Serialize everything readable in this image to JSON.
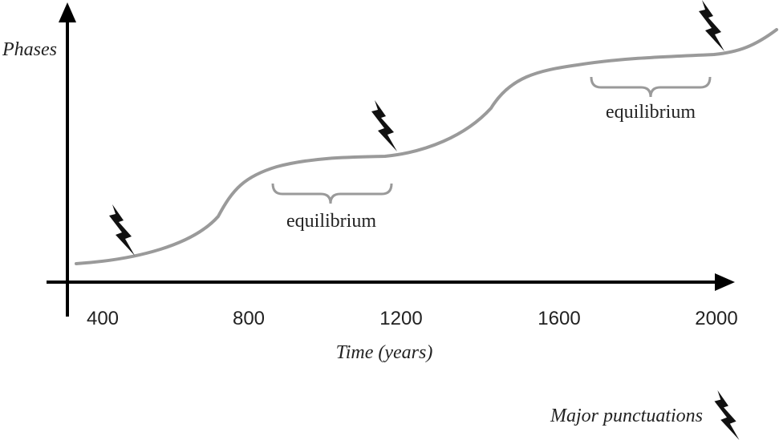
{
  "y_axis_label": "Phases",
  "x_axis_label": "Time (years)",
  "x_ticks": [
    "400",
    "800",
    "1200",
    "1600",
    "2000"
  ],
  "equilibria": [
    {
      "label": "equilibrium",
      "from_year": 860,
      "to_year": 1180
    },
    {
      "label": "equilibrium",
      "from_year": 1690,
      "to_year": 2000
    }
  ],
  "punctuations": [
    {
      "year": 440,
      "name": "punctuation"
    },
    {
      "year": 1190,
      "name": "punctuation"
    },
    {
      "year": 1975,
      "name": "punctuation"
    }
  ],
  "legend": {
    "label": "Major punctuations",
    "icon": "lightning-bolt-icon"
  },
  "colors": {
    "axis": "#000000",
    "curve": "#9a9a9a",
    "bracket": "#9a9a9a",
    "bolt": "#111111",
    "text": "#222222"
  }
}
